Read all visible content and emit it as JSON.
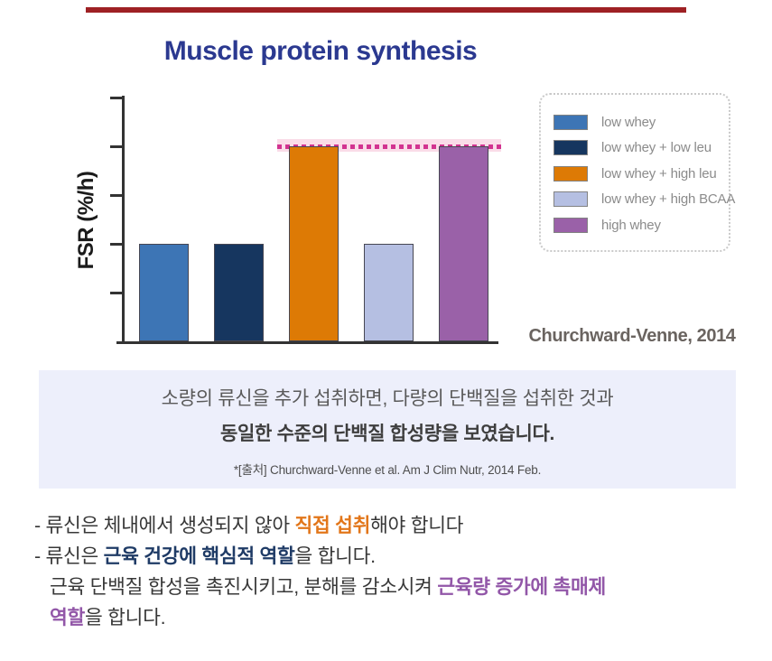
{
  "colors": {
    "top_rule": "#9e2124",
    "title": "#2b3990",
    "reference_dot": "#d23390",
    "reference_band": "#fadce8",
    "callout_bg": "#edeffb",
    "highlight_orange": "#e2761a",
    "highlight_navy": "#1f3b66",
    "highlight_purple": "#9257a8"
  },
  "chart": {
    "title": "Muscle protein synthesis",
    "ylabel": "FSR (%/h)",
    "source": "Churchward-Venne, 2014"
  },
  "chart_data": {
    "type": "bar",
    "title": "Muscle protein synthesis",
    "ylabel": "FSR (%/h)",
    "xlabel": "",
    "categories": [
      "low whey",
      "low whey + low leu",
      "low whey + high leu",
      "low whey + high BCAA",
      "high whey"
    ],
    "values": [
      2,
      2,
      4,
      2,
      4
    ],
    "colors": [
      "#3d75b5",
      "#16365f",
      "#dd7a05",
      "#b5bfe2",
      "#9a61a8"
    ],
    "ylim": [
      0,
      5
    ],
    "axis_tick_labels": "none (unlabeled tick marks, 5 intervals)",
    "grid": false,
    "legend_position": "right",
    "reference_line": {
      "level": 4,
      "style": "dotted",
      "color": "#d23390",
      "band_color": "#fadce8",
      "spans_categories": [
        "low whey + high leu",
        "high whey"
      ],
      "meaning": "low whey + high leu matches high whey synthesis level"
    },
    "source_label": "Churchward-Venne, 2014"
  },
  "legend": {
    "items": [
      {
        "label": "low whey",
        "color": "#3d75b5"
      },
      {
        "label": "low whey + low leu",
        "color": "#16365f"
      },
      {
        "label": "low whey + high leu",
        "color": "#dd7a05"
      },
      {
        "label": "low whey + high BCAA",
        "color": "#b5bfe2"
      },
      {
        "label": "high whey",
        "color": "#9a61a8"
      }
    ]
  },
  "callout": {
    "line1": "소량의 류신을 추가 섭취하면, 다량의 단백질을 섭취한 것과",
    "line2": "동일한 수준의 단백질 합성량을 보였습니다.",
    "footnote": "*[출처] Churchward-Venne et al. Am J Clim Nutr, 2014 Feb."
  },
  "bullets": {
    "lines": [
      {
        "indent": false,
        "segments": [
          {
            "text": "- 류신은 체내에서 생성되지 않아 "
          },
          {
            "text": "직접 섭취",
            "style": "orange"
          },
          {
            "text": "해야 합니다"
          }
        ]
      },
      {
        "indent": false,
        "segments": [
          {
            "text": "- 류신은 "
          },
          {
            "text": "근육 건강에 핵심적 역할",
            "style": "navy"
          },
          {
            "text": "을 합니다."
          }
        ]
      },
      {
        "indent": true,
        "segments": [
          {
            "text": "근육 단백질 합성을 촉진시키고, 분해를 감소시켜 "
          },
          {
            "text": "근육량 증가에 촉매제",
            "style": "purple"
          }
        ]
      },
      {
        "indent": true,
        "segments": [
          {
            "text": "역할",
            "style": "purple"
          },
          {
            "text": "을 합니다."
          }
        ]
      }
    ]
  }
}
